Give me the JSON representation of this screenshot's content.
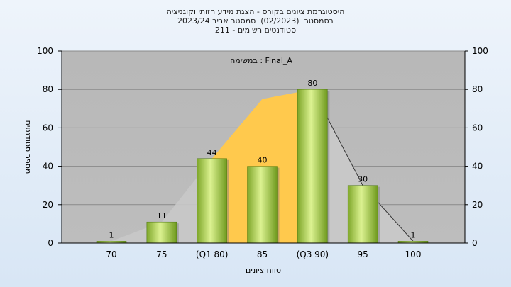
{
  "chart_data": {
    "type": "bar",
    "title_lines": [
      "היסטוגרמת ציונים בקורס - הצגת מידע חזותי וקוגניציה",
      "בסמסטר  (02/2023)  סמסטר אביב 2023/24",
      "סטודנטים רשומים - 211"
    ],
    "categories": [
      "70",
      "75",
      "(Q1 80)",
      "85",
      "(Q3 90)",
      "95",
      "100"
    ],
    "values": [
      1,
      11,
      44,
      40,
      80,
      30,
      1
    ],
    "annotation": "במשימה : Final_A",
    "xlabel": "טווח ציונים",
    "ylabel": "מספר סטודנטים",
    "ylim": [
      0,
      100
    ],
    "yticks": [
      0,
      20,
      40,
      60,
      80,
      100
    ],
    "grid": true,
    "colors": {
      "plot_bg": "#b4b4b4",
      "bar_light": "#d9f08a",
      "bar_dark": "#6f9a1e",
      "area": "#ffc94d",
      "area_back": "#c8c8c8"
    }
  }
}
